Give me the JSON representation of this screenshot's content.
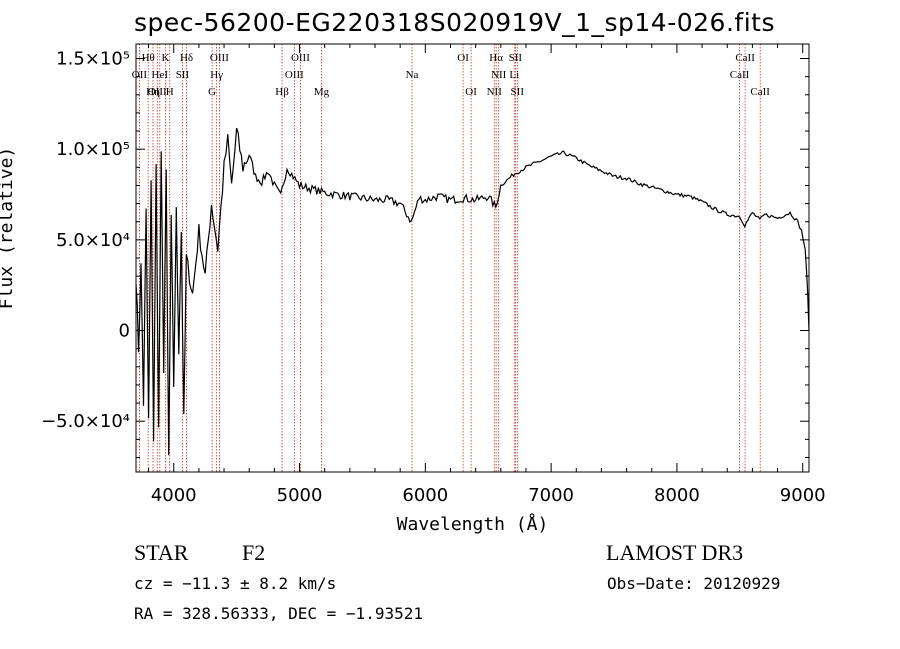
{
  "chart_data": {
    "type": "line",
    "title": "spec-56200-EG220318S020919V_1_sp14-026.fits",
    "xlabel": "Wavelength (Å)",
    "ylabel": "Flux (relative)",
    "xlim": [
      3700,
      9050
    ],
    "ylim": [
      -78000,
      158000
    ],
    "x_ticks": [
      4000,
      5000,
      6000,
      7000,
      8000,
      9000
    ],
    "y_ticks": [
      {
        "value": 150000,
        "label": "1.5×10⁵"
      },
      {
        "value": 100000,
        "label": "1.0×10⁵"
      },
      {
        "value": 50000,
        "label": "5.0×10⁴"
      },
      {
        "value": 0,
        "label": "0"
      },
      {
        "value": -50000,
        "label": "−5.0×10⁴"
      }
    ],
    "series": [
      {
        "name": "flux",
        "x": [
          3700,
          3720,
          3740,
          3760,
          3780,
          3800,
          3820,
          3840,
          3860,
          3880,
          3900,
          3920,
          3940,
          3960,
          3980,
          4000,
          4020,
          4040,
          4060,
          4080,
          4100,
          4150,
          4200,
          4250,
          4300,
          4350,
          4400,
          4430,
          4460,
          4500,
          4550,
          4600,
          4650,
          4700,
          4750,
          4800,
          4850,
          4900,
          4950,
          5000,
          5100,
          5200,
          5300,
          5400,
          5500,
          5600,
          5700,
          5800,
          5890,
          5950,
          6000,
          6100,
          6200,
          6300,
          6400,
          6500,
          6560,
          6600,
          6700,
          6800,
          6900,
          7000,
          7100,
          7200,
          7300,
          7400,
          7500,
          7600,
          7700,
          7800,
          7900,
          8000,
          8100,
          8200,
          8300,
          8400,
          8500,
          8540,
          8600,
          8660,
          8700,
          8800,
          8900,
          8960,
          8990,
          9020,
          9040,
          9050
        ],
        "values": [
          30000,
          -10000,
          35000,
          -40000,
          65000,
          -50000,
          80000,
          -60000,
          90000,
          -55000,
          95000,
          -20000,
          85000,
          -70000,
          60000,
          -30000,
          65000,
          -10000,
          55000,
          -50000,
          40000,
          20000,
          55000,
          30000,
          70000,
          45000,
          90000,
          105000,
          80000,
          110000,
          90000,
          97000,
          85000,
          82000,
          88000,
          80000,
          74000,
          90000,
          85000,
          80000,
          78000,
          76000,
          75000,
          74000,
          73000,
          72000,
          72000,
          70000,
          60000,
          73000,
          72000,
          74000,
          72000,
          73000,
          72000,
          74000,
          68000,
          80000,
          86000,
          90000,
          93000,
          96000,
          98000,
          95000,
          91000,
          88000,
          85000,
          84000,
          81000,
          79000,
          77000,
          75000,
          74000,
          71000,
          67000,
          64000,
          63000,
          58000,
          65000,
          61000,
          64000,
          62000,
          65000,
          60000,
          55000,
          45000,
          20000,
          0
        ]
      }
    ],
    "lines": [
      {
        "name": "Hθ",
        "wl": 3797,
        "row": 1
      },
      {
        "name": "OII",
        "wl": 3727,
        "row": 2
      },
      {
        "name": "OIII",
        "wl": 3869,
        "row": 3
      },
      {
        "name": "K",
        "wl": 3934,
        "row": 1
      },
      {
        "name": "HeI",
        "wl": 3889,
        "row": 2
      },
      {
        "name": "Hη",
        "wl": 3835,
        "row": 3
      },
      {
        "name": "SII",
        "wl": 4069,
        "row": 2
      },
      {
        "name": "H",
        "wl": 3968,
        "row": 3
      },
      {
        "name": "Hδ",
        "wl": 4102,
        "row": 1
      },
      {
        "name": "OIII",
        "wl": 4363,
        "row": 1
      },
      {
        "name": "Hγ",
        "wl": 4341,
        "row": 2
      },
      {
        "name": "G",
        "wl": 4305,
        "row": 3
      },
      {
        "name": "Hβ",
        "wl": 4861,
        "row": 3
      },
      {
        "name": "OIII",
        "wl": 5007,
        "row": 1
      },
      {
        "name": "OIII",
        "wl": 4959,
        "row": 2
      },
      {
        "name": "Mg",
        "wl": 5175,
        "row": 3
      },
      {
        "name": "Na",
        "wl": 5894,
        "row": 2
      },
      {
        "name": "OI",
        "wl": 6300,
        "row": 1
      },
      {
        "name": "OI",
        "wl": 6364,
        "row": 3
      },
      {
        "name": "Hα",
        "wl": 6563,
        "row": 1
      },
      {
        "name": "SII",
        "wl": 6716,
        "row": 1
      },
      {
        "name": "NII",
        "wl": 6583,
        "row": 2
      },
      {
        "name": "Li",
        "wl": 6707,
        "row": 2
      },
      {
        "name": "NII",
        "wl": 6548,
        "row": 3
      },
      {
        "name": "SII",
        "wl": 6731,
        "row": 3
      },
      {
        "name": "CaII",
        "wl": 8542,
        "row": 1
      },
      {
        "name": "CaII",
        "wl": 8498,
        "row": 2
      },
      {
        "name": "CaII",
        "wl": 8662,
        "row": 3
      }
    ],
    "grid": false,
    "line_color": "#000000",
    "marker_color": "#c0392b"
  },
  "info": {
    "object_class": "STAR",
    "subclass": "F2",
    "survey": "LAMOST DR3",
    "cz": "cz = −11.3 ± 8.2 km/s",
    "obs_date": "Obs−Date: 20120929",
    "coords": "RA = 328.56333, DEC =  −1.93521"
  }
}
